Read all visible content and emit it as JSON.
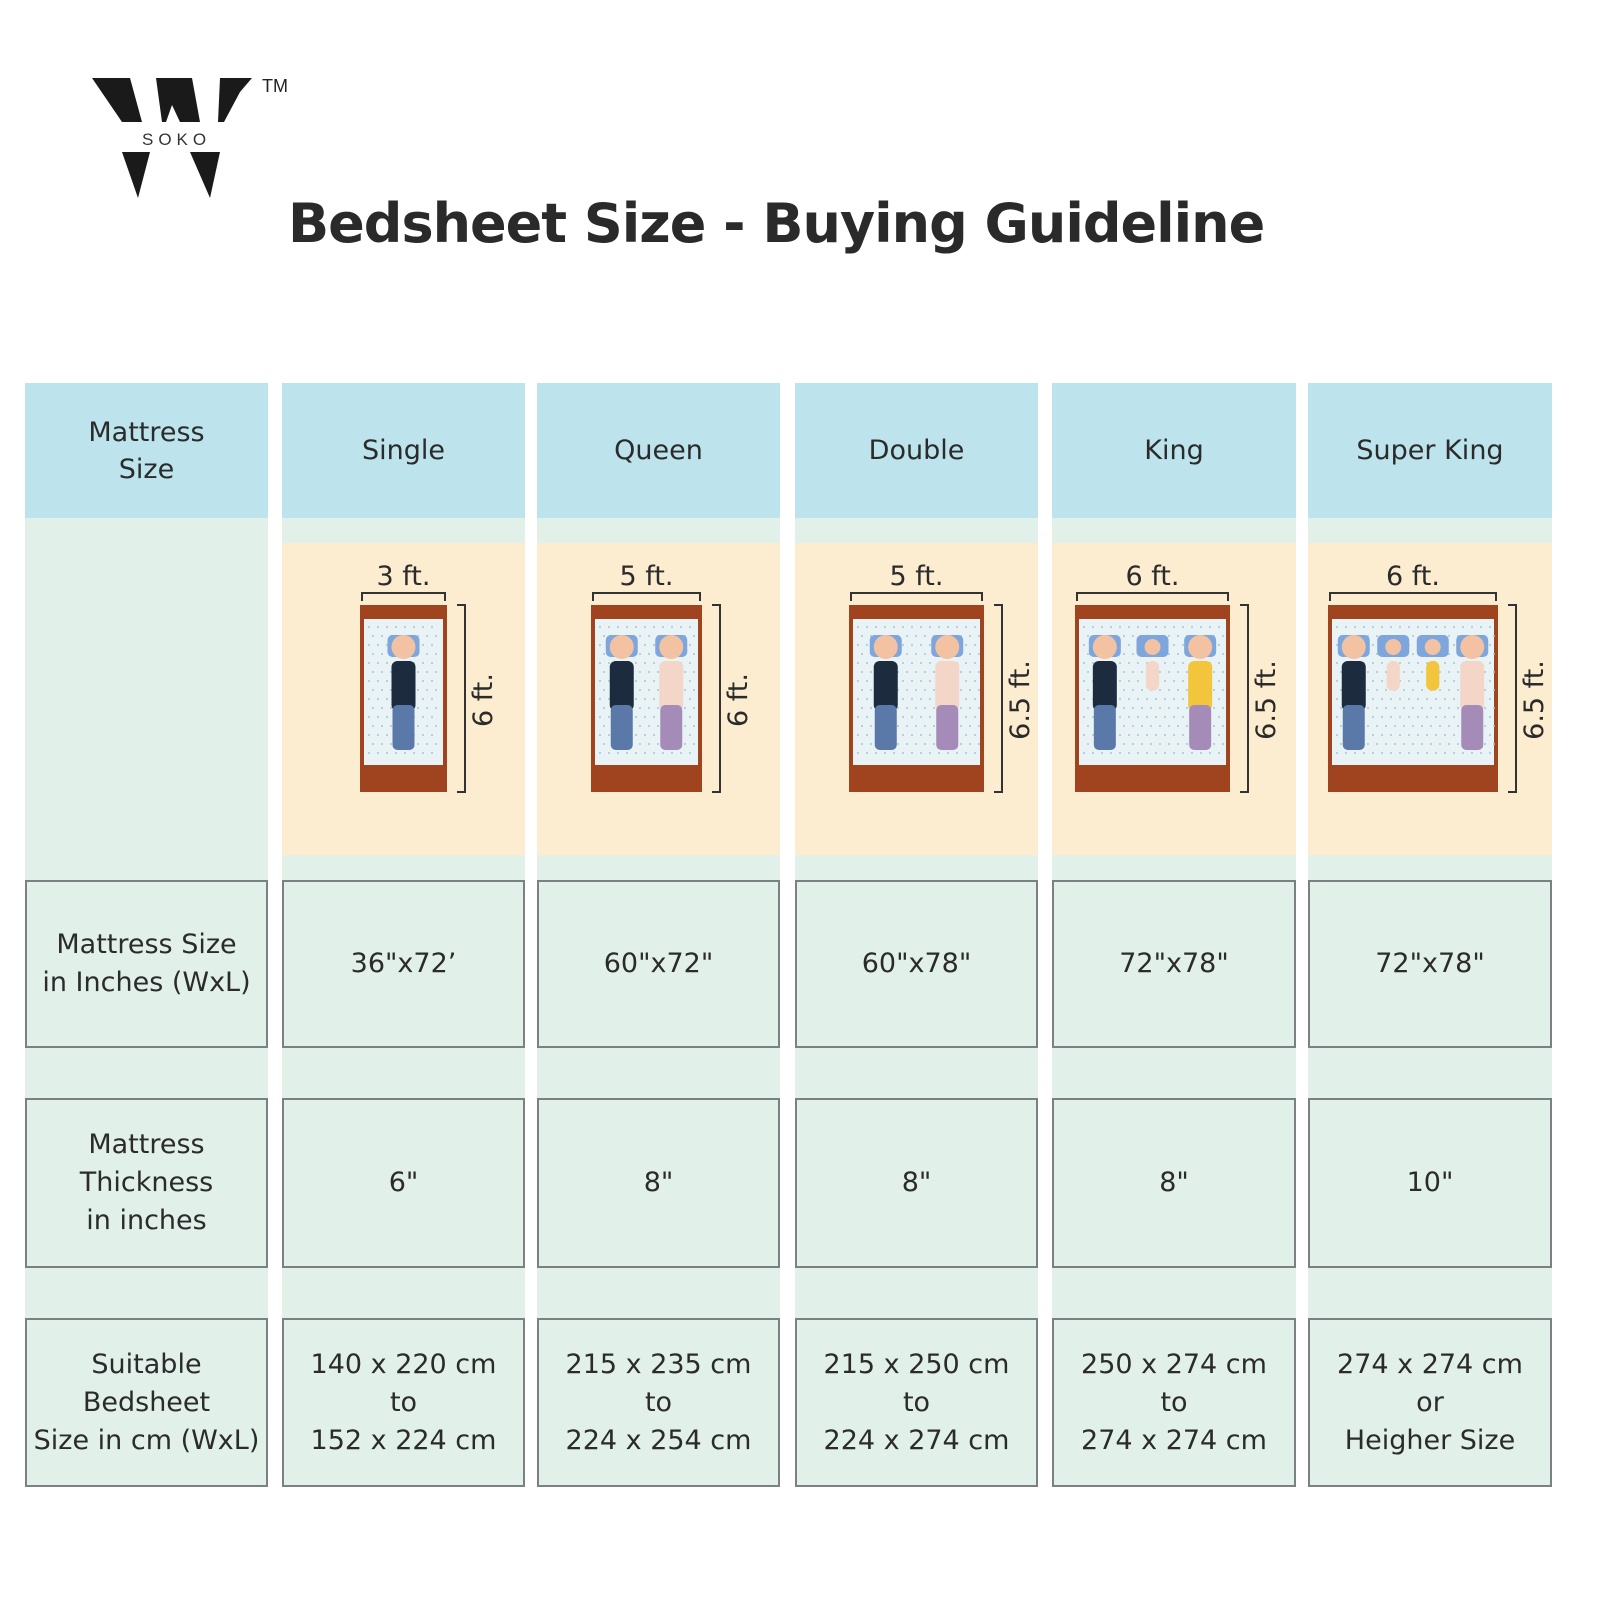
{
  "brand": {
    "logo_letter": "W",
    "logo_text": "SOKO",
    "trademark": "TM"
  },
  "title": "Bedsheet Size - Buying Guideline",
  "colors": {
    "header_bg": "#bde3ec",
    "body_bg": "#e2f0ea",
    "illustration_bg": "#fdedd0",
    "bed_frame": "#a0441f",
    "border": "#7b8082"
  },
  "row_labels": {
    "header": "Mattress\nSize",
    "inches": "Mattress Size\nin Inches (WxL)",
    "thickness": "Mattress\nThickness\nin inches",
    "bedsheet": "Suitable\nBedsheet\nSize in cm (WxL)"
  },
  "columns": [
    {
      "name": "Single",
      "width_label": "3 ft.",
      "length_label": "6 ft.",
      "sleepers": 1,
      "inches": "36\"x72’",
      "thickness": "6\"",
      "bedsheet": "140 x 220 cm\nto\n152 x 224 cm"
    },
    {
      "name": "Queen",
      "width_label": "5 ft.",
      "length_label": "6 ft.",
      "sleepers": 2,
      "inches": "60\"x72\"",
      "thickness": "8\"",
      "bedsheet": "215 x 235 cm\nto\n224 x 254 cm"
    },
    {
      "name": "Double",
      "width_label": "5 ft.",
      "length_label": "6.5 ft.",
      "sleepers": 2,
      "inches": "60\"x78\"",
      "thickness": "8\"",
      "bedsheet": "215 x 250 cm\nto\n224 x 274 cm"
    },
    {
      "name": "King",
      "width_label": "6 ft.",
      "length_label": "6.5 ft.",
      "sleepers": 3,
      "inches": "72\"x78\"",
      "thickness": "8\"",
      "bedsheet": "250 x 274 cm\nto\n274 x 274 cm"
    },
    {
      "name": "Super King",
      "width_label": "6 ft.",
      "length_label": "6.5 ft.",
      "sleepers": 4,
      "inches": "72\"x78\"",
      "thickness": "10\"",
      "bedsheet": "274 x 274 cm\nor\nHeigher Size"
    }
  ]
}
